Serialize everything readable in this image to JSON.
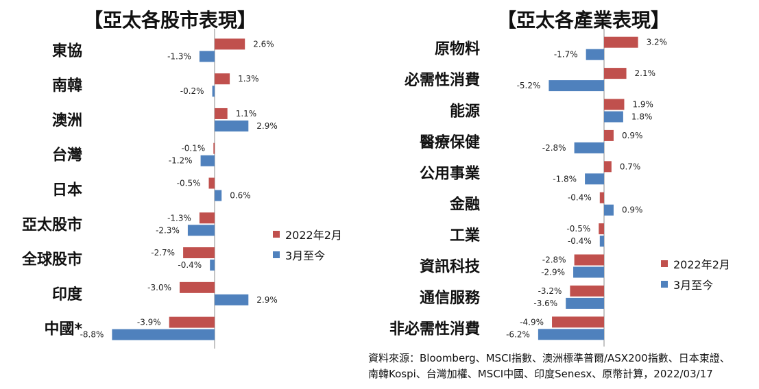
{
  "chart_data": [
    {
      "type": "bar",
      "orientation": "horizontal",
      "title": "【亞太各股市表現】",
      "categories": [
        "東協",
        "南韓",
        "澳洲",
        "台灣",
        "日本",
        "亞太股市",
        "全球股市",
        "印度",
        "中國*"
      ],
      "series": [
        {
          "name": "2022年2月",
          "color": "#c0504d",
          "values": [
            2.6,
            1.3,
            1.1,
            -0.1,
            -0.5,
            -1.3,
            -2.7,
            -3.0,
            -3.9
          ]
        },
        {
          "name": "3月至今",
          "color": "#4f81bd",
          "values": [
            -1.3,
            -0.2,
            2.9,
            -1.2,
            0.6,
            -2.3,
            -0.4,
            2.9,
            -8.8
          ]
        }
      ],
      "value_suffix": "%",
      "legend_position": "right"
    },
    {
      "type": "bar",
      "orientation": "horizontal",
      "title": "【亞太各產業表現】",
      "categories": [
        "原物料",
        "必需性消費",
        "能源",
        "醫療保健",
        "公用事業",
        "金融",
        "工業",
        "資訊科技",
        "通信服務",
        "非必需性消費"
      ],
      "series": [
        {
          "name": "2022年2月",
          "color": "#c0504d",
          "values": [
            3.2,
            2.1,
            1.9,
            0.9,
            0.7,
            -0.4,
            -0.5,
            -2.8,
            -3.2,
            -4.9
          ]
        },
        {
          "name": "3月至今",
          "color": "#4f81bd",
          "values": [
            -1.7,
            -5.2,
            1.8,
            -2.8,
            -1.8,
            0.9,
            -0.4,
            -2.9,
            -3.6,
            -6.2
          ]
        }
      ],
      "value_suffix": "%",
      "legend_position": "right"
    }
  ],
  "source_note": {
    "line1": "資料來源：Bloomberg、MSCI指數、澳洲標準普爾/ASX200指數、日本東證、",
    "line2": "南韓Kospi、台灣加權、MSCI中國、印度Senesx、原幣計算，2022/03/17"
  }
}
